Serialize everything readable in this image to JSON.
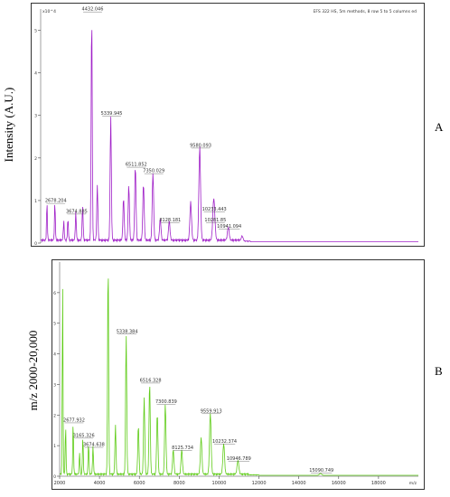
{
  "labels": {
    "ylabel_a": "Intensity (A.U.)",
    "ylabel_b": "m/z 2000-20,000",
    "letter_a": "A",
    "letter_b": "B"
  },
  "chart_data": [
    {
      "type": "line",
      "panel": "A",
      "color": "#a020c8",
      "header_text": "EFS 322 HS, 5m methods, 8 row 5 to 5 columns ed",
      "y_unit": "x10^4",
      "xlim": [
        2000,
        20000
      ],
      "ylim": [
        0,
        5.5
      ],
      "yticks": [
        0,
        1,
        2,
        3,
        4,
        5
      ],
      "peaks": [
        {
          "x": 2300,
          "y": 0.9,
          "label": ""
        },
        {
          "x": 2678.204,
          "y": 0.9,
          "label": "2678.204"
        },
        {
          "x": 3100,
          "y": 0.45,
          "label": ""
        },
        {
          "x": 3300,
          "y": 0.5,
          "label": ""
        },
        {
          "x": 3674.885,
          "y": 0.65,
          "label": "3674.885"
        },
        {
          "x": 4000,
          "y": 0.8,
          "label": ""
        },
        {
          "x": 4432.046,
          "y": 5.4,
          "label": "4432.046"
        },
        {
          "x": 4700,
          "y": 1.3,
          "label": ""
        },
        {
          "x": 5339.945,
          "y": 2.95,
          "label": "5339.945"
        },
        {
          "x": 5950,
          "y": 1.0,
          "label": ""
        },
        {
          "x": 6200,
          "y": 1.3,
          "label": ""
        },
        {
          "x": 6511.852,
          "y": 1.75,
          "label": "6511.852"
        },
        {
          "x": 6900,
          "y": 1.35,
          "label": ""
        },
        {
          "x": 7350.029,
          "y": 1.6,
          "label": "7350.029"
        },
        {
          "x": 7700,
          "y": 0.5,
          "label": ""
        },
        {
          "x": 8128.181,
          "y": 0.45,
          "label": "8128.181"
        },
        {
          "x": 9150,
          "y": 0.9,
          "label": ""
        },
        {
          "x": 9580.093,
          "y": 2.2,
          "label": "9580.093"
        },
        {
          "x": 10233.443,
          "y": 0.7,
          "label": "10233.443"
        },
        {
          "x": 10281.85,
          "y": 0.45,
          "label": "10281.85"
        },
        {
          "x": 10941.094,
          "y": 0.3,
          "label": "10941.094"
        },
        {
          "x": 11600,
          "y": 0.12,
          "label": ""
        }
      ]
    },
    {
      "type": "line",
      "panel": "B",
      "color": "#5fcc18",
      "xlabel_unit": "m/z",
      "xlim": [
        2000,
        20000
      ],
      "ylim": [
        0,
        7
      ],
      "yticks": [
        0,
        1,
        2,
        3,
        4,
        5,
        6
      ],
      "xticks": [
        2000,
        4000,
        6000,
        8000,
        10000,
        12000,
        14000,
        16000,
        18000
      ],
      "peaks": [
        {
          "x": 2150,
          "y": 6.2,
          "label": ""
        },
        {
          "x": 2300,
          "y": 1.6,
          "label": ""
        },
        {
          "x": 2677.932,
          "y": 1.7,
          "label": "2677.932"
        },
        {
          "x": 3000,
          "y": 0.7,
          "label": ""
        },
        {
          "x": 3165.326,
          "y": 1.2,
          "label": "3165.326"
        },
        {
          "x": 3450,
          "y": 1.0,
          "label": ""
        },
        {
          "x": 3674.638,
          "y": 0.9,
          "label": "3674.638"
        },
        {
          "x": 4432.0,
          "y": 7.0,
          "label": ""
        },
        {
          "x": 4800,
          "y": 1.6,
          "label": ""
        },
        {
          "x": 5338.384,
          "y": 4.6,
          "label": "5338.384"
        },
        {
          "x": 5950,
          "y": 1.6,
          "label": ""
        },
        {
          "x": 6240,
          "y": 2.5,
          "label": ""
        },
        {
          "x": 6516.328,
          "y": 3.0,
          "label": "6516.328"
        },
        {
          "x": 6900,
          "y": 2.0,
          "label": ""
        },
        {
          "x": 7300.839,
          "y": 2.3,
          "label": "7300.839"
        },
        {
          "x": 7700,
          "y": 0.8,
          "label": ""
        },
        {
          "x": 8125.734,
          "y": 0.8,
          "label": "8125.734"
        },
        {
          "x": 9100,
          "y": 1.2,
          "label": ""
        },
        {
          "x": 9559.913,
          "y": 2.0,
          "label": "9559.913"
        },
        {
          "x": 10232.374,
          "y": 1.0,
          "label": "10232.374"
        },
        {
          "x": 10946.789,
          "y": 0.45,
          "label": "10946.789"
        },
        {
          "x": 15090.749,
          "y": 0.06,
          "label": "15090.749"
        }
      ]
    }
  ]
}
